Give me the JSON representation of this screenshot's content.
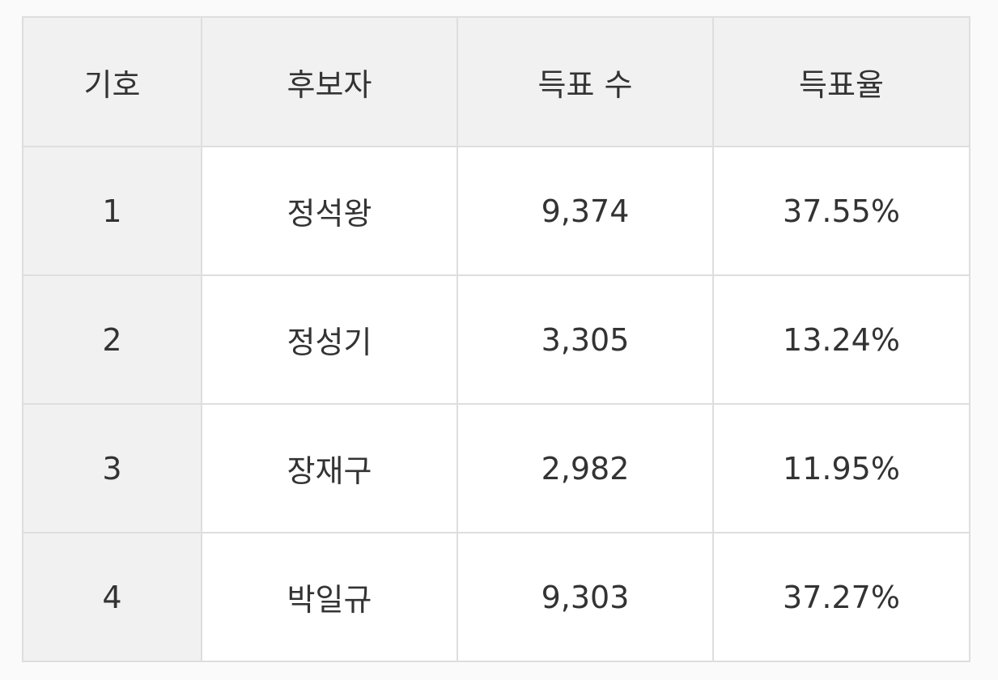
{
  "table": {
    "headers": [
      "기호",
      "후보자",
      "득표 수",
      "득표율"
    ],
    "rows": [
      [
        "1",
        "정석왕",
        "9,374",
        "37.55%"
      ],
      [
        "2",
        "정성기",
        "3,305",
        "13.24%"
      ],
      [
        "3",
        "장재구",
        "2,982",
        "11.95%"
      ],
      [
        "4",
        "박일규",
        "9,303",
        "37.27%"
      ]
    ]
  }
}
